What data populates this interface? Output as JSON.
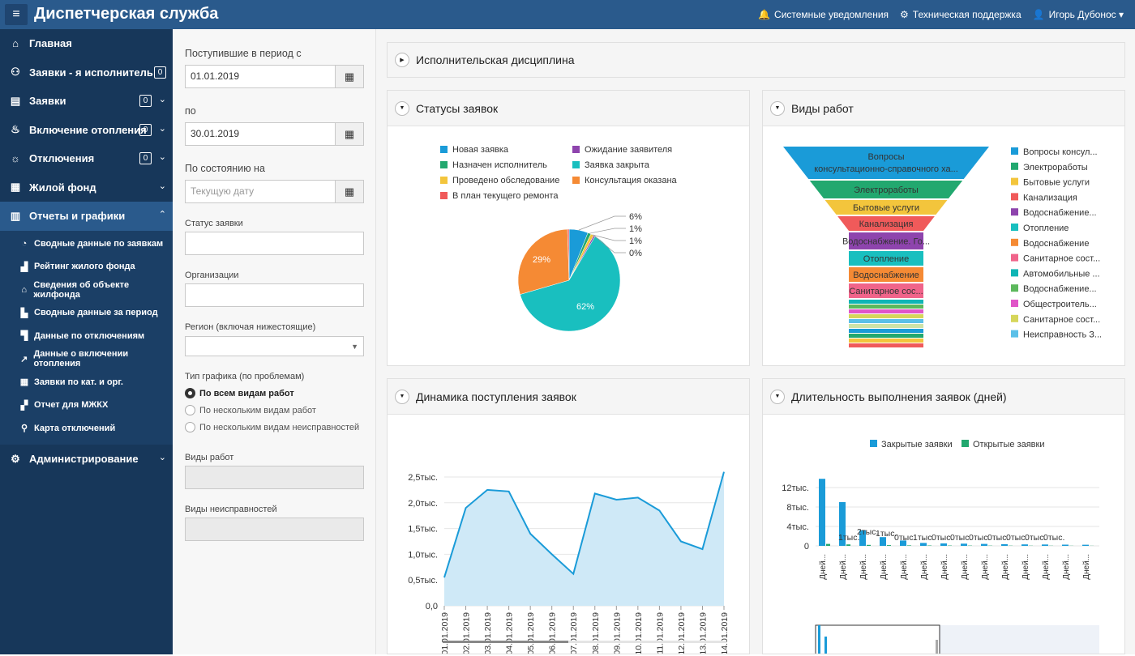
{
  "header": {
    "title": "Диспетчерская служба",
    "notifications": "Системные уведомления",
    "support": "Техническая поддержка",
    "user": "Игорь Дубонос"
  },
  "sidebar": {
    "items": [
      {
        "label": "Главная",
        "icon": "home-icon",
        "badge": ""
      },
      {
        "label": "Заявки - я исполнитель",
        "icon": "user-icon",
        "badge": "0"
      },
      {
        "label": "Заявки",
        "icon": "document-icon",
        "badge": "0"
      },
      {
        "label": "Включение отопления",
        "icon": "flame-icon",
        "badge": "0"
      },
      {
        "label": "Отключения",
        "icon": "bulb-icon",
        "badge": "0"
      },
      {
        "label": "Жилой фонд",
        "icon": "building-icon",
        "badge": ""
      },
      {
        "label": "Отчеты и графики",
        "icon": "chart-icon",
        "badge": ""
      }
    ],
    "subitems": [
      "Сводные данные по заявкам",
      "Рейтинг жилого фонда",
      "Сведения об объекте жилфонда",
      "Сводные данные за период",
      "Данные по отключениям",
      "Данные о включении отопления",
      "Заявки по кат. и орг.",
      "Отчет для МЖКХ",
      "Карта отключений"
    ],
    "admin": "Администрирование"
  },
  "filters": {
    "period_from_label": "Поступившие в период с",
    "period_from": "01.01.2019",
    "period_to_label": "по",
    "period_to": "30.01.2019",
    "state_label": "По состоянию на",
    "state_placeholder": "Текущую дату",
    "status_label": "Статус заявки",
    "org_label": "Организации",
    "region_label": "Регион (включая нижестоящие)",
    "chart_type_label": "Тип графика (по проблемам)",
    "radio": [
      "По всем видам работ",
      "По нескольким видам работ",
      "По нескольким видам неисправностей"
    ],
    "work_types_label": "Виды работ",
    "faults_label": "Виды неисправностей"
  },
  "panels": {
    "discipline": "Исполнительская дисциплина",
    "statuses": "Статусы заявок",
    "work_types": "Виды работ",
    "dynamics": "Динамика поступления заявок",
    "duration": "Длительность выполнения заявок (дней)"
  },
  "chart_data": [
    {
      "type": "pie",
      "legend": [
        "Новая заявка",
        "Ожидание заявителя",
        "Назначен исполнитель",
        "Заявка закрыта",
        "Проведено обследование",
        "Консультация оказана",
        "В план текущего ремонта"
      ],
      "slices": [
        {
          "name": "Новая заявка",
          "value": 6,
          "color": "#1a9bd8"
        },
        {
          "name": "Назначен исполнитель",
          "value": 1,
          "color": "#22a86f"
        },
        {
          "name": "Проведено обследование",
          "value": 1,
          "color": "#f3c53c"
        },
        {
          "name": "Ожидание заявителя",
          "value": 0.5,
          "color": "#8e44ad"
        },
        {
          "name": "Заявка закрыта",
          "value": 62,
          "color": "#19bfbf"
        },
        {
          "name": "Консультация оказана",
          "value": 29,
          "color": "#f58a34"
        },
        {
          "name": "В план текущего ремонта",
          "value": 0.5,
          "color": "#f05a5a"
        }
      ],
      "labels": [
        "6%",
        "1%",
        "1%",
        "0%",
        "62%",
        "29%"
      ]
    },
    {
      "type": "funnel",
      "labels": [
        "Вопросы консультационно-справочного ха...",
        "Электроработы",
        "Бытовые услуги",
        "Канализация",
        "Водоснабжение. Го...",
        "Отопление",
        "Водоснабжение",
        "Санитарное сос..."
      ],
      "legend": [
        "Вопросы консул...",
        "Электроработы",
        "Бытовые услуги",
        "Канализация",
        "Водоснабжение...",
        "Отопление",
        "Водоснабжение",
        "Санитарное сост...",
        "Автомобильные ...",
        "Водоснабжение...",
        "Общестроитель...",
        "Санитарное сост...",
        "Неисправность З..."
      ],
      "colors": [
        "#1a9bd8",
        "#22a86f",
        "#f3c53c",
        "#f05a5a",
        "#8e44ad",
        "#19bfbf",
        "#f58a34",
        "#f0648a",
        "#0fb5b5",
        "#5cb85c",
        "#e056c8",
        "#d6d65a",
        "#5bc0e8",
        "#cfe3a8"
      ]
    },
    {
      "type": "area",
      "x": [
        "01.01.2019",
        "02.01.2019",
        "03.01.2019",
        "04.01.2019",
        "05.01.2019",
        "06.01.2019",
        "07.01.2019",
        "08.01.2019",
        "09.01.2019",
        "10.01.2019",
        "11.01.2019",
        "12.01.2019",
        "13.01.2019",
        "14.01.2019"
      ],
      "values": [
        550,
        1900,
        2250,
        2220,
        1400,
        1000,
        620,
        2180,
        2060,
        2100,
        1850,
        1250,
        1100,
        2600
      ],
      "yticks": [
        "0,0",
        "0,5тыс.",
        "1,0тыс.",
        "1,5тыс.",
        "2,0тыс.",
        "2,5тыс."
      ],
      "ylim": [
        0,
        2500
      ]
    },
    {
      "type": "bar",
      "legend": [
        "Закрытые заявки",
        "Открытые заявки"
      ],
      "categories": [
        "Дней...",
        "Дней...",
        "Дней...",
        "Дней...",
        "Дней...",
        "Дней...",
        "Дней...",
        "Дней...",
        "Дней...",
        "Дней...",
        "Дней...",
        "Дней...",
        "Дней...",
        "Дней..."
      ],
      "series": [
        {
          "name": "Закрытые заявки",
          "values": [
            13800,
            9000,
            3200,
            1800,
            1100,
            600,
            500,
            450,
            400,
            350,
            300,
            280,
            250,
            230
          ]
        },
        {
          "name": "Открытые заявки",
          "values": [
            400,
            300,
            200,
            150,
            100,
            80,
            70,
            60,
            50,
            45,
            40,
            35,
            30,
            25
          ]
        }
      ],
      "yticks": [
        "0",
        "4тыс.",
        "8тыс.",
        "12тыс."
      ],
      "ylim": [
        0,
        15000
      ],
      "data_labels": [
        "1тыс.",
        "2тыс.",
        "1тыс.",
        "0тыс.",
        "1тыс.",
        "0тыс.",
        "0тыс.",
        "0тыс.",
        "0тыс.",
        "0тыс.",
        "0тыс.",
        "0тыс."
      ]
    }
  ]
}
